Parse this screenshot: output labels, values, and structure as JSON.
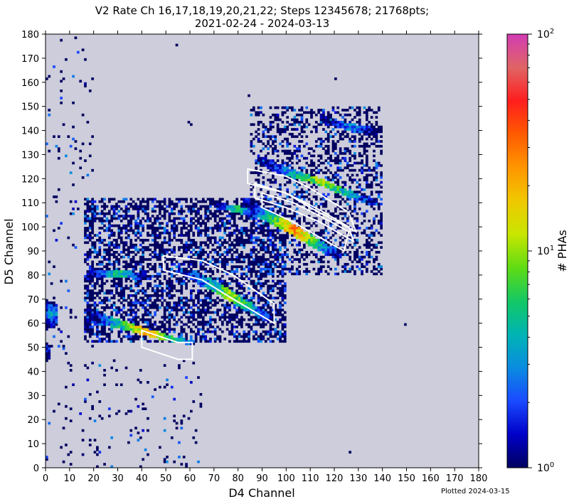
{
  "chart_data": {
    "type": "heatmap",
    "title": "V2 Rate Ch 16,17,18,19,20,21,22; Steps 12345678; 21768pts;",
    "subtitle": "2021-02-24 - 2024-03-13",
    "xlabel": "D4 Channel",
    "ylabel": "D5 Channel",
    "xlim": [
      0,
      180
    ],
    "ylim": [
      0,
      180
    ],
    "xticks": [
      0,
      10,
      20,
      30,
      40,
      50,
      60,
      70,
      80,
      90,
      100,
      110,
      120,
      130,
      140,
      150,
      160,
      170,
      180
    ],
    "yticks": [
      0,
      10,
      20,
      30,
      40,
      50,
      60,
      70,
      80,
      90,
      100,
      110,
      120,
      130,
      140,
      150,
      160,
      170,
      180
    ],
    "bin_size": 1,
    "background": "#cdcddb",
    "colorbar": {
      "label": "# PHAs",
      "scale": "log",
      "range": [
        1,
        100
      ],
      "tick_labels": [
        {
          "base": "10",
          "exp": "0"
        },
        {
          "base": "10",
          "exp": "1"
        },
        {
          "base": "10",
          "exp": "2"
        }
      ],
      "colormap": [
        "#000060",
        "#0000c8",
        "#1a4aff",
        "#0a8ce0",
        "#00b4b4",
        "#14c864",
        "#60dc14",
        "#c8e600",
        "#f0c800",
        "#ff9600",
        "#ff5a00",
        "#ff1e1e",
        "#e06464",
        "#d23cb4"
      ]
    },
    "regions": [
      {
        "name": "main-band",
        "points": [
          [
            84,
            112
          ],
          [
            90,
            108
          ],
          [
            100,
            103
          ],
          [
            110,
            97
          ],
          [
            118,
            92
          ],
          [
            124,
            88
          ],
          [
            122,
            86
          ],
          [
            112,
            91
          ],
          [
            100,
            98
          ],
          [
            90,
            103
          ],
          [
            82,
            108
          ]
        ],
        "peak": 30
      },
      {
        "name": "upper-band",
        "points": [
          [
            88,
            130
          ],
          [
            100,
            125
          ],
          [
            112,
            121
          ],
          [
            124,
            116
          ],
          [
            134,
            112
          ],
          [
            139,
            111
          ],
          [
            136,
            109
          ],
          [
            124,
            113
          ],
          [
            112,
            118
          ],
          [
            100,
            121
          ],
          [
            88,
            126
          ]
        ],
        "peak": 12
      },
      {
        "name": "top-cluster",
        "points": [
          [
            114,
            147
          ],
          [
            126,
            143
          ],
          [
            138,
            141
          ],
          [
            138,
            137
          ],
          [
            126,
            140
          ],
          [
            114,
            143
          ]
        ],
        "peak": 3
      },
      {
        "name": "left-thin-band",
        "points": [
          [
            70,
            110
          ],
          [
            80,
            109
          ],
          [
            88,
            106
          ],
          [
            88,
            103
          ],
          [
            80,
            106
          ],
          [
            70,
            108
          ]
        ],
        "peak": 6
      },
      {
        "name": "diag-band",
        "points": [
          [
            55,
            84
          ],
          [
            70,
            78
          ],
          [
            80,
            72
          ],
          [
            90,
            66
          ],
          [
            95,
            62
          ],
          [
            93,
            60
          ],
          [
            82,
            66
          ],
          [
            70,
            73
          ],
          [
            55,
            81
          ]
        ],
        "peak": 10
      },
      {
        "name": "row-band-80",
        "points": [
          [
            17,
            82
          ],
          [
            30,
            82
          ],
          [
            42,
            81
          ],
          [
            42,
            78
          ],
          [
            30,
            79
          ],
          [
            17,
            79
          ]
        ],
        "peak": 6
      },
      {
        "name": "lower-band",
        "points": [
          [
            17,
            66
          ],
          [
            30,
            62
          ],
          [
            45,
            57
          ],
          [
            55,
            54
          ],
          [
            62,
            53
          ],
          [
            62,
            51
          ],
          [
            55,
            52
          ],
          [
            45,
            54
          ],
          [
            30,
            58
          ],
          [
            17,
            60
          ]
        ],
        "peak": 25
      },
      {
        "name": "left-edge",
        "points": [
          [
            0,
            70
          ],
          [
            5,
            68
          ],
          [
            5,
            59
          ],
          [
            0,
            57
          ]
        ],
        "peak": 4
      },
      {
        "name": "left-edge-lower",
        "points": [
          [
            0,
            52
          ],
          [
            2,
            51
          ],
          [
            2,
            45
          ],
          [
            0,
            44
          ]
        ],
        "peak": 2
      }
    ],
    "scatter_boxes": [
      {
        "x": [
          16,
          100
        ],
        "y": [
          52,
          112
        ],
        "density": 0.55
      },
      {
        "x": [
          85,
          140
        ],
        "y": [
          80,
          150
        ],
        "density": 0.35
      },
      {
        "x": [
          0,
          20
        ],
        "y": [
          0,
          180
        ],
        "density": 0.03
      },
      {
        "x": [
          15,
          65
        ],
        "y": [
          0,
          45
        ],
        "density": 0.04
      }
    ],
    "isolated_points": [
      [
        54,
        175
      ],
      [
        120,
        161
      ],
      [
        84,
        154
      ],
      [
        59,
        143
      ],
      [
        60,
        142
      ],
      [
        126,
        6
      ],
      [
        40,
        3
      ],
      [
        149,
        59
      ],
      [
        5,
        26
      ],
      [
        33,
        22
      ]
    ],
    "boundary_polygons": [
      [
        [
          40,
          57
        ],
        [
          55,
          52
        ],
        [
          61,
          52
        ],
        [
          61,
          45
        ],
        [
          55,
          45
        ],
        [
          40,
          50
        ]
      ],
      [
        [
          49,
          88
        ],
        [
          65,
          86
        ],
        [
          78,
          80
        ],
        [
          95,
          68
        ],
        [
          95,
          60
        ],
        [
          78,
          70
        ],
        [
          65,
          78
        ],
        [
          49,
          82
        ]
      ],
      [
        [
          84,
          124
        ],
        [
          100,
          121
        ],
        [
          110,
          116
        ],
        [
          126,
          106
        ],
        [
          129,
          98
        ],
        [
          110,
          108
        ],
        [
          100,
          114
        ],
        [
          84,
          118
        ]
      ],
      [
        [
          87,
          118
        ],
        [
          100,
          114
        ],
        [
          114,
          107
        ],
        [
          126,
          100
        ],
        [
          128,
          94
        ],
        [
          114,
          102
        ],
        [
          100,
          108
        ],
        [
          87,
          112
        ]
      ],
      [
        [
          90,
          114
        ],
        [
          103,
          110
        ],
        [
          115,
          104
        ],
        [
          126,
          98
        ],
        [
          124,
          90
        ],
        [
          115,
          95
        ],
        [
          103,
          102
        ],
        [
          90,
          108
        ]
      ]
    ]
  },
  "plotted_label": "Plotted 2024-03-15"
}
